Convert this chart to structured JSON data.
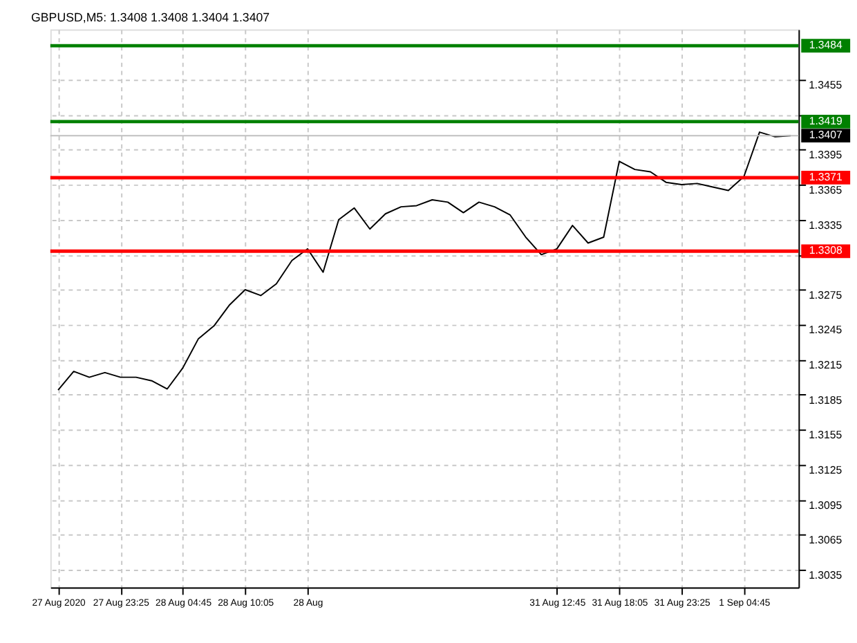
{
  "chart_data": {
    "type": "line",
    "title": "GBPUSD,M5: 1.3408 1.3408 1.3404 1.3407",
    "categories": [
      "27 Aug 2020",
      null,
      null,
      null,
      "27 Aug 23:25",
      null,
      null,
      null,
      "28 Aug 04:45",
      null,
      null,
      null,
      "28 Aug 10:05",
      null,
      null,
      null,
      "28 Aug",
      null,
      null,
      null,
      null,
      null,
      null,
      null,
      null,
      null,
      null,
      null,
      null,
      null,
      null,
      null,
      "31 Aug 12:45",
      null,
      null,
      null,
      "31 Aug 18:05",
      null,
      null,
      null,
      "31 Aug 23:25",
      null,
      null,
      null,
      "1 Sep 04:45",
      null,
      null,
      null
    ],
    "series": [
      {
        "color": "#000000",
        "values": [
          1.3189,
          1.3205,
          1.32,
          1.3204,
          1.32,
          1.32,
          1.3197,
          1.319,
          1.3208,
          1.3233,
          1.3244,
          1.3262,
          1.3275,
          1.327,
          1.328,
          1.33,
          1.331,
          1.329,
          1.3335,
          1.3345,
          1.3327,
          1.334,
          1.3346,
          1.3347,
          1.3352,
          1.335,
          1.3341,
          1.335,
          1.3346,
          1.3339,
          1.332,
          1.3305,
          1.331,
          1.333,
          1.3315,
          1.332,
          1.3385,
          1.3378,
          1.3376,
          1.3367,
          1.3365,
          1.3366,
          1.3363,
          1.336,
          1.3372,
          1.341,
          1.3406,
          1.3407
        ]
      }
    ],
    "ylim": [
      1.302,
      1.3498
    ],
    "yticks": [
      1.3035,
      1.3065,
      1.3095,
      1.3125,
      1.3155,
      1.3185,
      1.3215,
      1.3245,
      1.3275,
      {
        "value": 1.3305,
        "label": null
      },
      1.3335,
      1.3365,
      1.3395,
      {
        "value": 1.3425,
        "label": null
      },
      1.3455
    ],
    "ref_lines": [
      {
        "axis": "y",
        "value": 1.3484,
        "label": "1.3484",
        "color": "#008000"
      },
      {
        "axis": "y",
        "value": 1.3419,
        "label": "1.3419",
        "color": "#008000"
      },
      {
        "axis": "y",
        "value": 1.3407,
        "label": "1.3407",
        "color": "#c0c0c0"
      },
      {
        "axis": "y",
        "value": 1.3371,
        "label": "1.3371",
        "color": "#ff0000"
      },
      {
        "axis": "y",
        "value": 1.3308,
        "label": "1.3308",
        "color": "#ff0000"
      }
    ],
    "grid": true,
    "line_style": "solid",
    "marker": "none"
  }
}
